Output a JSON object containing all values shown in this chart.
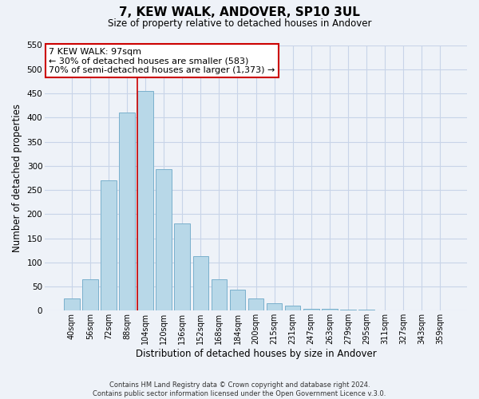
{
  "title": "7, KEW WALK, ANDOVER, SP10 3UL",
  "subtitle": "Size of property relative to detached houses in Andover",
  "xlabel": "Distribution of detached houses by size in Andover",
  "ylabel": "Number of detached properties",
  "bar_labels": [
    "40sqm",
    "56sqm",
    "72sqm",
    "88sqm",
    "104sqm",
    "120sqm",
    "136sqm",
    "152sqm",
    "168sqm",
    "184sqm",
    "200sqm",
    "215sqm",
    "231sqm",
    "247sqm",
    "263sqm",
    "279sqm",
    "295sqm",
    "311sqm",
    "327sqm",
    "343sqm",
    "359sqm"
  ],
  "bar_values": [
    25,
    65,
    270,
    410,
    455,
    293,
    180,
    113,
    65,
    43,
    25,
    15,
    10,
    4,
    3,
    2,
    2,
    1,
    1,
    1,
    1
  ],
  "bar_color": "#b8d8e8",
  "bar_edge_color": "#7ab0cc",
  "annotation_box_color": "#ffffff",
  "annotation_border_color": "#cc0000",
  "annotation_lines": [
    "7 KEW WALK: 97sqm",
    "← 30% of detached houses are smaller (583)",
    "70% of semi-detached houses are larger (1,373) →"
  ],
  "vline_x": 3.8,
  "vline_color": "#cc0000",
  "ylim": [
    0,
    550
  ],
  "yticks": [
    0,
    50,
    100,
    150,
    200,
    250,
    300,
    350,
    400,
    450,
    500,
    550
  ],
  "footer_lines": [
    "Contains HM Land Registry data © Crown copyright and database right 2024.",
    "Contains public sector information licensed under the Open Government Licence v.3.0."
  ],
  "grid_color": "#c8d4e8",
  "bg_color": "#eef2f8"
}
